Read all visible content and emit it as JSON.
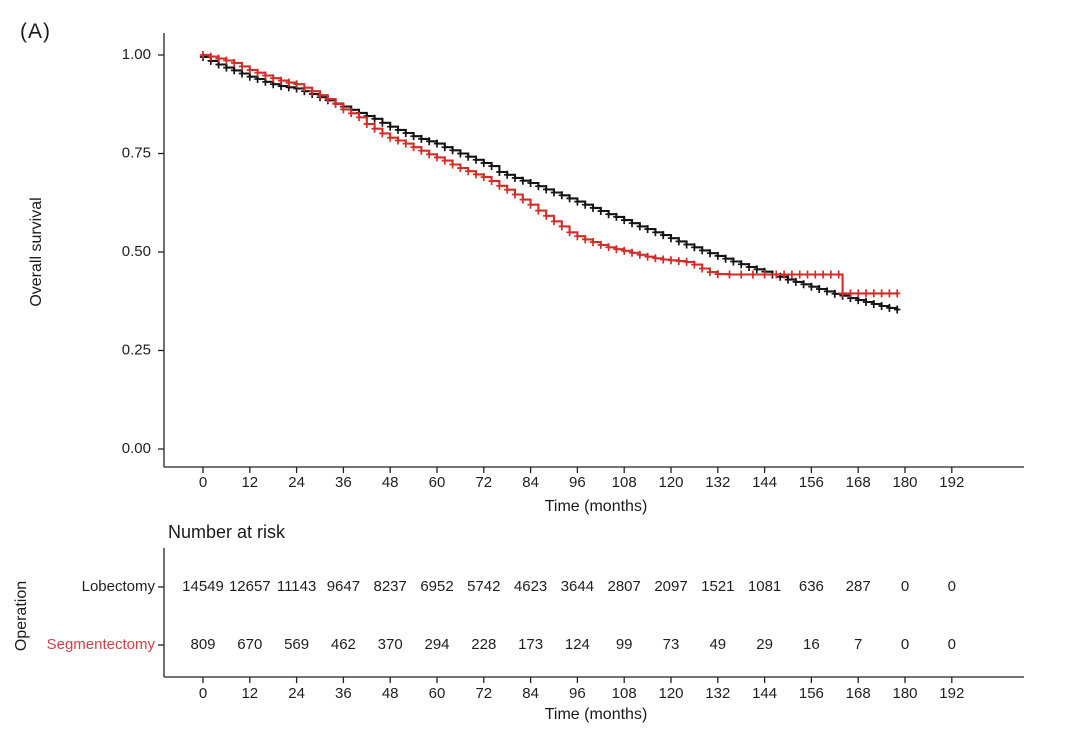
{
  "panel_label": "(A)",
  "chart_data": {
    "type": "line",
    "subtype": "kaplan-meier-survival",
    "title": "",
    "ylabel": "Overall survival",
    "xlabel": "Time (months)",
    "x_ticks": [
      0,
      12,
      24,
      36,
      48,
      60,
      72,
      84,
      96,
      108,
      120,
      132,
      144,
      156,
      168,
      180,
      192
    ],
    "y_ticks": [
      "0.00",
      "0.25",
      "0.50",
      "0.75",
      "1.00"
    ],
    "xlim": [
      0,
      210
    ],
    "ylim": [
      0,
      1
    ],
    "grid": false,
    "legend_position": "none",
    "censor_marker": "+",
    "axis_color": "#222222",
    "series": [
      {
        "name": "Lobectomy",
        "color": "#151515",
        "points": [
          [
            0,
            0.995
          ],
          [
            2,
            0.985
          ],
          [
            4,
            0.976
          ],
          [
            6,
            0.968
          ],
          [
            8,
            0.961
          ],
          [
            10,
            0.953
          ],
          [
            12,
            0.945
          ],
          [
            14,
            0.939
          ],
          [
            16,
            0.932
          ],
          [
            18,
            0.926
          ],
          [
            20,
            0.921
          ],
          [
            22,
            0.918
          ],
          [
            24,
            0.915
          ],
          [
            26,
            0.908
          ],
          [
            28,
            0.901
          ],
          [
            30,
            0.893
          ],
          [
            32,
            0.885
          ],
          [
            34,
            0.877
          ],
          [
            36,
            0.869
          ],
          [
            38,
            0.861
          ],
          [
            40,
            0.853
          ],
          [
            42,
            0.845
          ],
          [
            44,
            0.838
          ],
          [
            46,
            0.828
          ],
          [
            48,
            0.818
          ],
          [
            50,
            0.81
          ],
          [
            52,
            0.802
          ],
          [
            54,
            0.794
          ],
          [
            56,
            0.787
          ],
          [
            58,
            0.781
          ],
          [
            60,
            0.775
          ],
          [
            62,
            0.766
          ],
          [
            64,
            0.758
          ],
          [
            66,
            0.75
          ],
          [
            68,
            0.742
          ],
          [
            70,
            0.734
          ],
          [
            72,
            0.726
          ],
          [
            74,
            0.718
          ],
          [
            76,
            0.703
          ],
          [
            78,
            0.696
          ],
          [
            80,
            0.688
          ],
          [
            82,
            0.681
          ],
          [
            84,
            0.675
          ],
          [
            86,
            0.667
          ],
          [
            88,
            0.659
          ],
          [
            90,
            0.651
          ],
          [
            92,
            0.644
          ],
          [
            94,
            0.636
          ],
          [
            96,
            0.628
          ],
          [
            98,
            0.62
          ],
          [
            100,
            0.612
          ],
          [
            102,
            0.604
          ],
          [
            104,
            0.596
          ],
          [
            106,
            0.589
          ],
          [
            108,
            0.581
          ],
          [
            110,
            0.573
          ],
          [
            112,
            0.565
          ],
          [
            114,
            0.558
          ],
          [
            116,
            0.55
          ],
          [
            118,
            0.543
          ],
          [
            120,
            0.535
          ],
          [
            122,
            0.527
          ],
          [
            124,
            0.519
          ],
          [
            126,
            0.512
          ],
          [
            128,
            0.504
          ],
          [
            130,
            0.497
          ],
          [
            132,
            0.49
          ],
          [
            134,
            0.483
          ],
          [
            136,
            0.476
          ],
          [
            138,
            0.469
          ],
          [
            140,
            0.462
          ],
          [
            142,
            0.456
          ],
          [
            144,
            0.45
          ],
          [
            146,
            0.443
          ],
          [
            148,
            0.437
          ],
          [
            150,
            0.43
          ],
          [
            152,
            0.424
          ],
          [
            154,
            0.418
          ],
          [
            156,
            0.412
          ],
          [
            158,
            0.406
          ],
          [
            160,
            0.4
          ],
          [
            162,
            0.394
          ],
          [
            164,
            0.389
          ],
          [
            166,
            0.383
          ],
          [
            168,
            0.378
          ],
          [
            170,
            0.373
          ],
          [
            172,
            0.368
          ],
          [
            174,
            0.363
          ],
          [
            176,
            0.358
          ],
          [
            178,
            0.354
          ]
        ]
      },
      {
        "name": "Segmentectomy",
        "color": "#d32d28",
        "points": [
          [
            0,
            1.0
          ],
          [
            2,
            0.996
          ],
          [
            4,
            0.991
          ],
          [
            6,
            0.986
          ],
          [
            8,
            0.98
          ],
          [
            10,
            0.971
          ],
          [
            12,
            0.962
          ],
          [
            14,
            0.955
          ],
          [
            16,
            0.948
          ],
          [
            18,
            0.941
          ],
          [
            20,
            0.935
          ],
          [
            22,
            0.93
          ],
          [
            24,
            0.926
          ],
          [
            26,
            0.917
          ],
          [
            28,
            0.908
          ],
          [
            30,
            0.898
          ],
          [
            32,
            0.888
          ],
          [
            34,
            0.876
          ],
          [
            36,
            0.862
          ],
          [
            38,
            0.852
          ],
          [
            40,
            0.842
          ],
          [
            42,
            0.825
          ],
          [
            44,
            0.813
          ],
          [
            46,
            0.801
          ],
          [
            48,
            0.79
          ],
          [
            50,
            0.783
          ],
          [
            52,
            0.775
          ],
          [
            54,
            0.766
          ],
          [
            56,
            0.757
          ],
          [
            58,
            0.748
          ],
          [
            60,
            0.74
          ],
          [
            62,
            0.732
          ],
          [
            64,
            0.722
          ],
          [
            66,
            0.713
          ],
          [
            68,
            0.705
          ],
          [
            70,
            0.697
          ],
          [
            72,
            0.69
          ],
          [
            74,
            0.68
          ],
          [
            76,
            0.668
          ],
          [
            78,
            0.658
          ],
          [
            80,
            0.646
          ],
          [
            82,
            0.633
          ],
          [
            84,
            0.62
          ],
          [
            86,
            0.605
          ],
          [
            88,
            0.592
          ],
          [
            90,
            0.578
          ],
          [
            92,
            0.565
          ],
          [
            94,
            0.55
          ],
          [
            96,
            0.54
          ],
          [
            98,
            0.532
          ],
          [
            100,
            0.525
          ],
          [
            102,
            0.518
          ],
          [
            104,
            0.512
          ],
          [
            106,
            0.507
          ],
          [
            108,
            0.503
          ],
          [
            110,
            0.498
          ],
          [
            112,
            0.493
          ],
          [
            114,
            0.488
          ],
          [
            116,
            0.484
          ],
          [
            118,
            0.481
          ],
          [
            120,
            0.479
          ],
          [
            122,
            0.477
          ],
          [
            124,
            0.475
          ],
          [
            126,
            0.468
          ],
          [
            128,
            0.458
          ],
          [
            130,
            0.449
          ],
          [
            132,
            0.444
          ],
          [
            135,
            0.443
          ],
          [
            138,
            0.443
          ],
          [
            141,
            0.443
          ],
          [
            144,
            0.443
          ],
          [
            147,
            0.443
          ],
          [
            149,
            0.443
          ],
          [
            151,
            0.443
          ],
          [
            153,
            0.443
          ],
          [
            155,
            0.443
          ],
          [
            157,
            0.443
          ],
          [
            159,
            0.443
          ],
          [
            161,
            0.443
          ],
          [
            163,
            0.443
          ],
          [
            164,
            0.395
          ],
          [
            166,
            0.395
          ],
          [
            168,
            0.395
          ],
          [
            170,
            0.395
          ],
          [
            172,
            0.395
          ],
          [
            174,
            0.395
          ],
          [
            176,
            0.395
          ],
          [
            178,
            0.395
          ]
        ]
      }
    ],
    "risk_table": {
      "title": "Number at risk",
      "row_axis_label": "Operation",
      "xlabel": "Time (months)",
      "times": [
        0,
        12,
        24,
        36,
        48,
        60,
        72,
        84,
        96,
        108,
        120,
        132,
        144,
        156,
        168,
        180,
        192
      ],
      "rows": [
        {
          "label": "Lobectomy",
          "color": "#1f1f1f",
          "values": [
            14549,
            12657,
            11143,
            9647,
            8237,
            6952,
            5742,
            4623,
            3644,
            2807,
            2097,
            1521,
            1081,
            636,
            287,
            0,
            0
          ]
        },
        {
          "label": "Segmentectomy",
          "color": "#cf4149",
          "values": [
            809,
            670,
            569,
            462,
            370,
            294,
            228,
            173,
            124,
            99,
            73,
            49,
            29,
            16,
            7,
            0,
            0
          ]
        }
      ]
    }
  }
}
